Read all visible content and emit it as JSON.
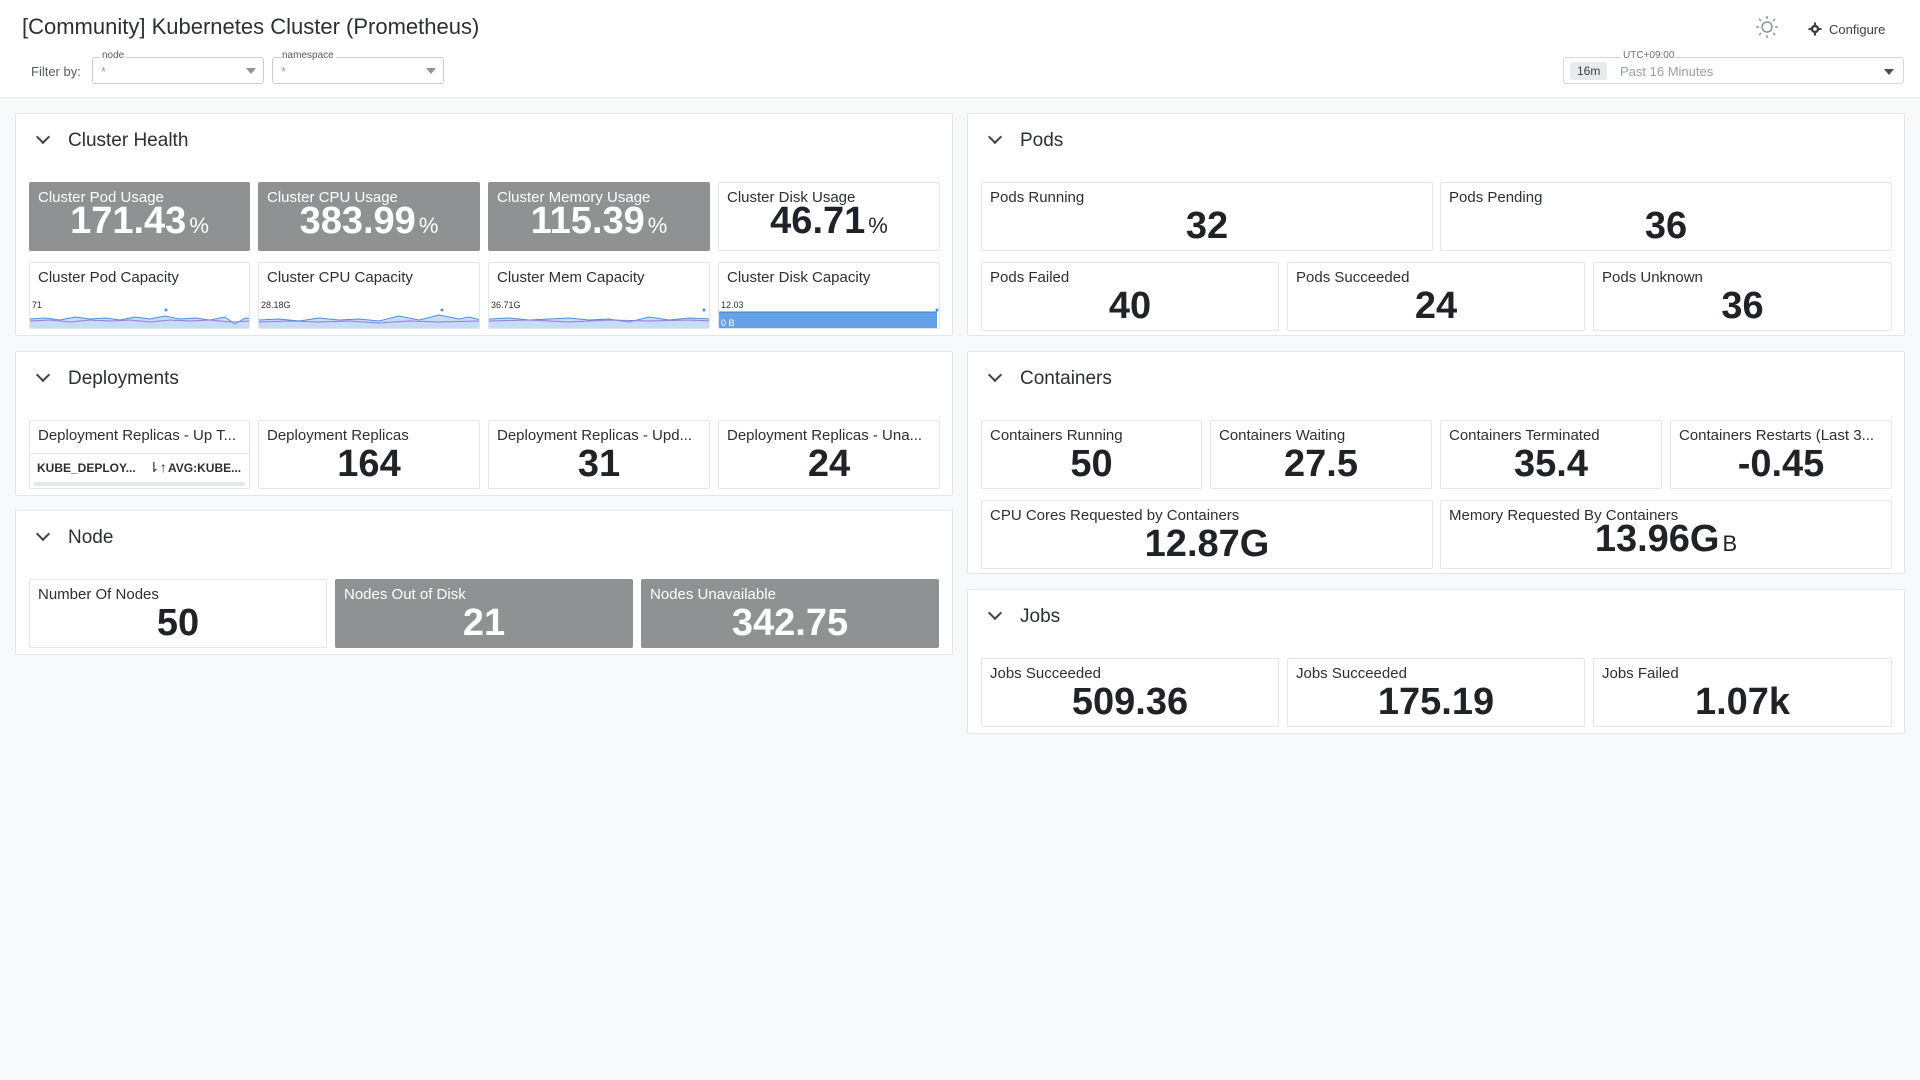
{
  "header": {
    "title": "[Community] Kubernetes Cluster (Prometheus)",
    "filter_by_label": "Filter by:",
    "filters": [
      {
        "label": "node",
        "value": "*"
      },
      {
        "label": "namespace",
        "value": "*"
      }
    ],
    "configure_label": "Configure",
    "time": {
      "timezone": "UTC+09:00",
      "chip": "16m",
      "range": "Past 16 Minutes"
    }
  },
  "cluster_health": {
    "title": "Cluster Health",
    "usage": [
      {
        "label": "Cluster Pod Usage",
        "value": "171.43",
        "unit": "%"
      },
      {
        "label": "Cluster CPU Usage",
        "value": "383.99",
        "unit": "%"
      },
      {
        "label": "Cluster Memory Usage",
        "value": "115.39",
        "unit": "%"
      },
      {
        "label": "Cluster Disk Usage",
        "value": "46.71",
        "unit": "%"
      }
    ],
    "capacity": [
      {
        "label": "Cluster Pod Capacity",
        "ymax": "71",
        "ymin": "0"
      },
      {
        "label": "Cluster CPU Capacity",
        "ymax": "28.18G",
        "ymin": "0"
      },
      {
        "label": "Cluster Mem Capacity",
        "ymax": "36.71G",
        "ymin": "0"
      },
      {
        "label": "Cluster Disk Capacity",
        "ymax": "12.03",
        "ymin": "0 B"
      }
    ]
  },
  "deployments": {
    "title": "Deployments",
    "table": {
      "label": "Deployment Replicas - Up T...",
      "col1": "KUBE_DEPLOY...",
      "sort_icon": "⇂↑",
      "col2": "AVG:KUBE..."
    },
    "tiles": [
      {
        "label": "Deployment Replicas",
        "value": "164"
      },
      {
        "label": "Deployment Replicas - Upd...",
        "value": "31"
      },
      {
        "label": "Deployment Replicas - Una...",
        "value": "24"
      }
    ]
  },
  "node": {
    "title": "Node",
    "tiles": [
      {
        "label": "Number Of Nodes",
        "value": "50"
      },
      {
        "label": "Nodes Out of Disk",
        "value": "21"
      },
      {
        "label": "Nodes Unavailable",
        "value": "342.75"
      }
    ]
  },
  "pods": {
    "title": "Pods",
    "tiles": [
      {
        "label": "Pods Running",
        "value": "32"
      },
      {
        "label": "Pods Pending",
        "value": "36"
      },
      {
        "label": "Pods Failed",
        "value": "40"
      },
      {
        "label": "Pods Succeeded",
        "value": "24"
      },
      {
        "label": "Pods Unknown",
        "value": "36"
      }
    ]
  },
  "containers": {
    "title": "Containers",
    "tiles": [
      {
        "label": "Containers Running",
        "value": "50"
      },
      {
        "label": "Containers Waiting",
        "value": "27.5"
      },
      {
        "label": "Containers Terminated",
        "value": "35.4"
      },
      {
        "label": "Containers Restarts (Last 3...",
        "value": "-0.45"
      },
      {
        "label": "CPU Cores Requested by Containers",
        "value": "12.87G"
      },
      {
        "label": "Memory Requested By Containers",
        "value": "13.96G",
        "unit": "B"
      }
    ]
  },
  "jobs": {
    "title": "Jobs",
    "tiles": [
      {
        "label": "Jobs Succeeded",
        "value": "509.36"
      },
      {
        "label": "Jobs Succeeded",
        "value": "175.19"
      },
      {
        "label": "Jobs Failed",
        "value": "1.07k"
      }
    ]
  },
  "colors": {
    "highlight_tile": "#8f9193",
    "spark_line": "#4a90e2",
    "spark_fill": "#c7dcf5",
    "spark_accent": "#9d7ae0"
  }
}
